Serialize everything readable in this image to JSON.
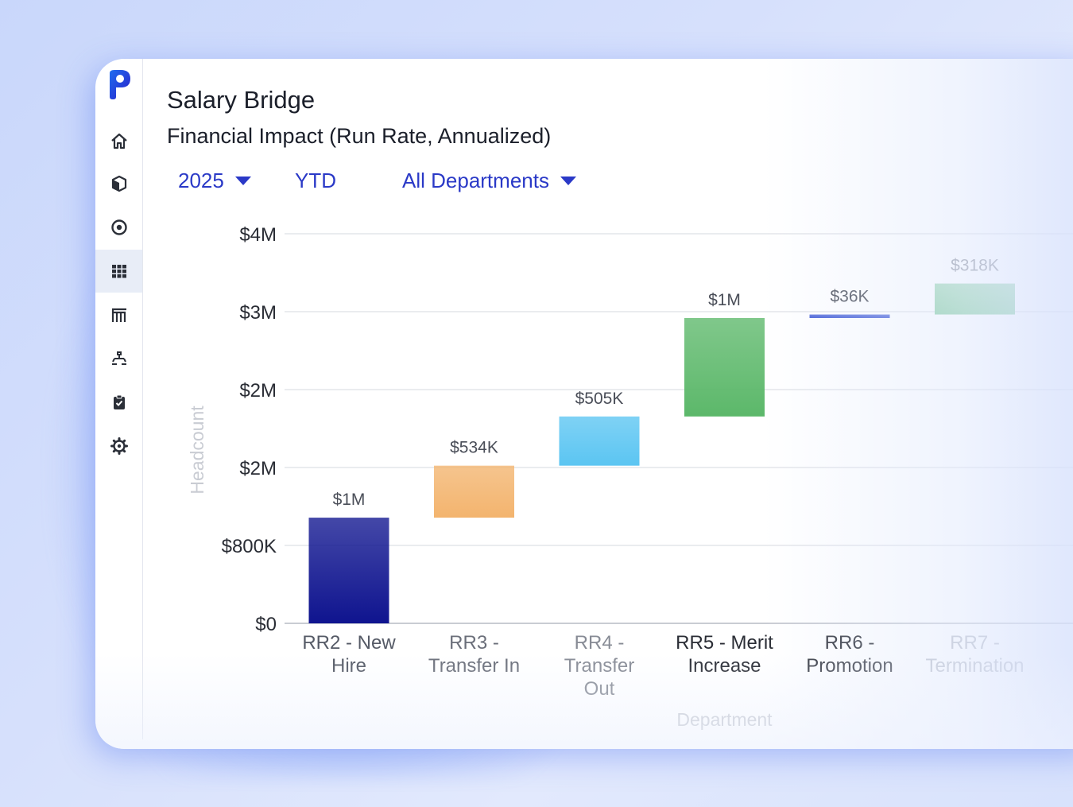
{
  "header": {
    "title": "Salary Bridge",
    "subtitle": "Financial Impact (Run Rate, Annualized)"
  },
  "filters": {
    "year": "2025",
    "period": "YTD",
    "department": "All Departments"
  },
  "sidebar": {
    "logo_icon": "p-logo-icon",
    "items": [
      {
        "icon": "home-icon",
        "active": false
      },
      {
        "icon": "cube-icon",
        "active": false
      },
      {
        "icon": "target-icon",
        "active": false
      },
      {
        "icon": "grid-icon",
        "active": true
      },
      {
        "icon": "building-icon",
        "active": false
      },
      {
        "icon": "org-chart-icon",
        "active": false
      },
      {
        "icon": "clipboard-check-icon",
        "active": false
      },
      {
        "icon": "gear-icon",
        "active": false
      }
    ]
  },
  "chart_data": {
    "type": "waterfall",
    "xlabel": "Department",
    "ylabel": "Headcount",
    "y_ticks": [
      "$0",
      "$800K",
      "$2M",
      "$2M",
      "$3M",
      "$4M"
    ],
    "y_tick_values": [
      0,
      800000,
      1600000,
      2400000,
      3200000,
      4000000
    ],
    "ylim": [
      0,
      4000000
    ],
    "grid": true,
    "categories": [
      "RR2 - New Hire",
      "RR3 - Transfer In",
      "RR4 - Transfer Out",
      "RR5 - Merit Increase",
      "RR6 - Promotion",
      "RR7 - Termination"
    ],
    "category_lines": [
      [
        "RR2 - New",
        "Hire"
      ],
      [
        "RR3 -",
        "Transfer In"
      ],
      [
        "RR4 -",
        "Transfer",
        "Out"
      ],
      [
        "RR5 - Merit",
        "Increase"
      ],
      [
        "RR6 -",
        "Promotion"
      ],
      [
        "RR7 -",
        "Termination"
      ]
    ],
    "labels": [
      "$1M",
      "$534K",
      "$505K",
      "$1M",
      "$36K",
      "$318K"
    ],
    "bars": [
      {
        "start": 0,
        "end": 1085000,
        "color": "#0f148f"
      },
      {
        "start": 1085000,
        "end": 1619000,
        "color": "#f3b46e"
      },
      {
        "start": 1619000,
        "end": 2124000,
        "color": "#5bc5f2"
      },
      {
        "start": 2124000,
        "end": 3135000,
        "color": "#5cb86a"
      },
      {
        "start": 3135000,
        "end": 3171000,
        "color": "#3a55d4"
      },
      {
        "start": 3171000,
        "end": 3489000,
        "color": "#86cda0"
      }
    ]
  }
}
